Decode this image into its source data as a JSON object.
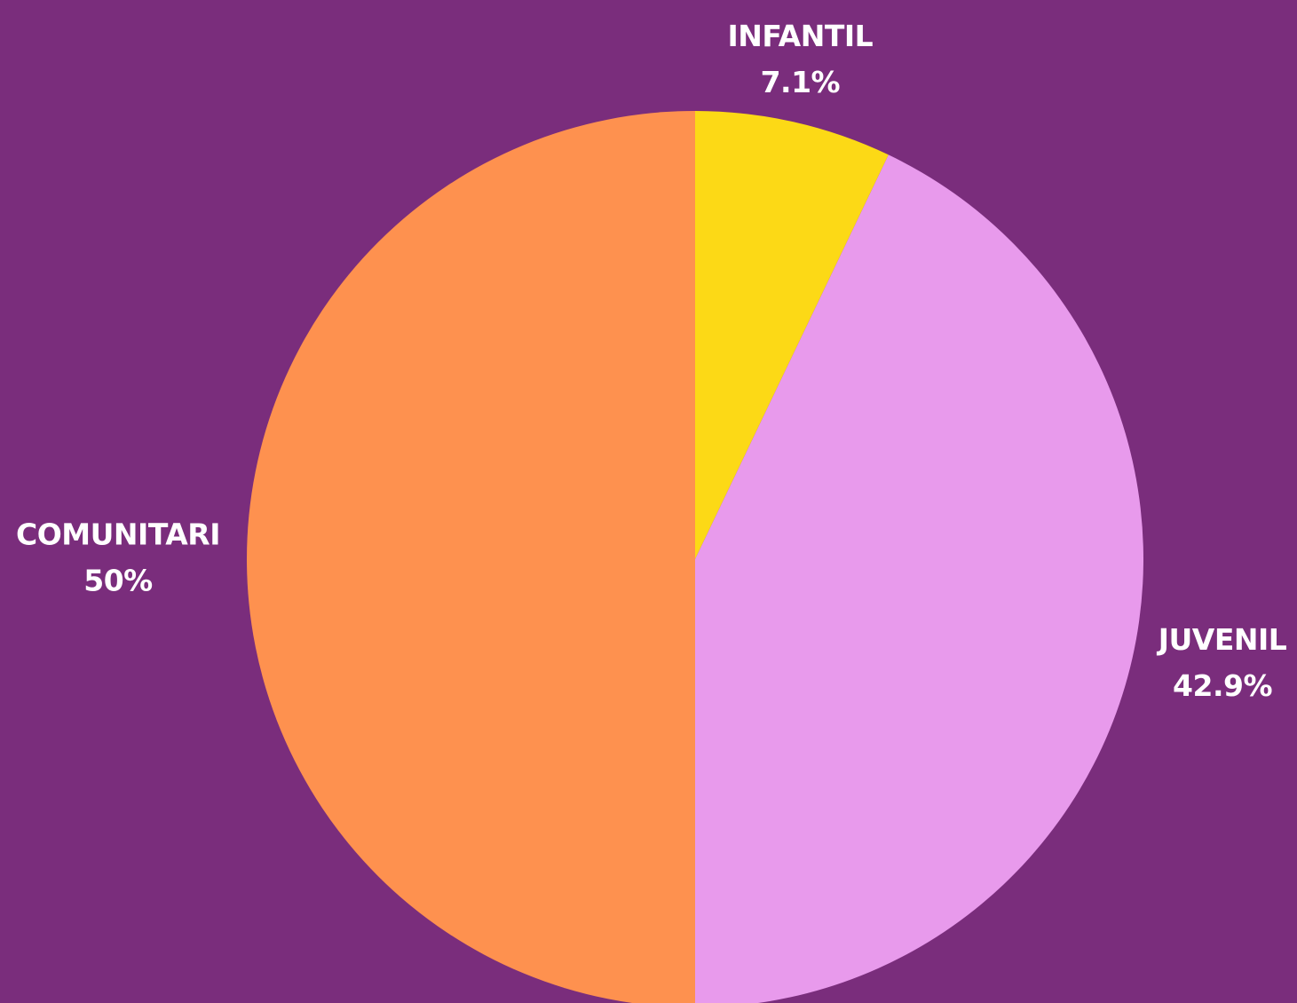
{
  "chart_data": {
    "type": "pie",
    "categories": [
      "INFANTIL",
      "JUVENIL",
      "COMUNITARI"
    ],
    "values": [
      7.1,
      42.9,
      50
    ],
    "value_labels": [
      "7.1%",
      "42.9%",
      "50%"
    ],
    "colors": [
      "#fcd916",
      "#e89aec",
      "#fe914f"
    ]
  }
}
